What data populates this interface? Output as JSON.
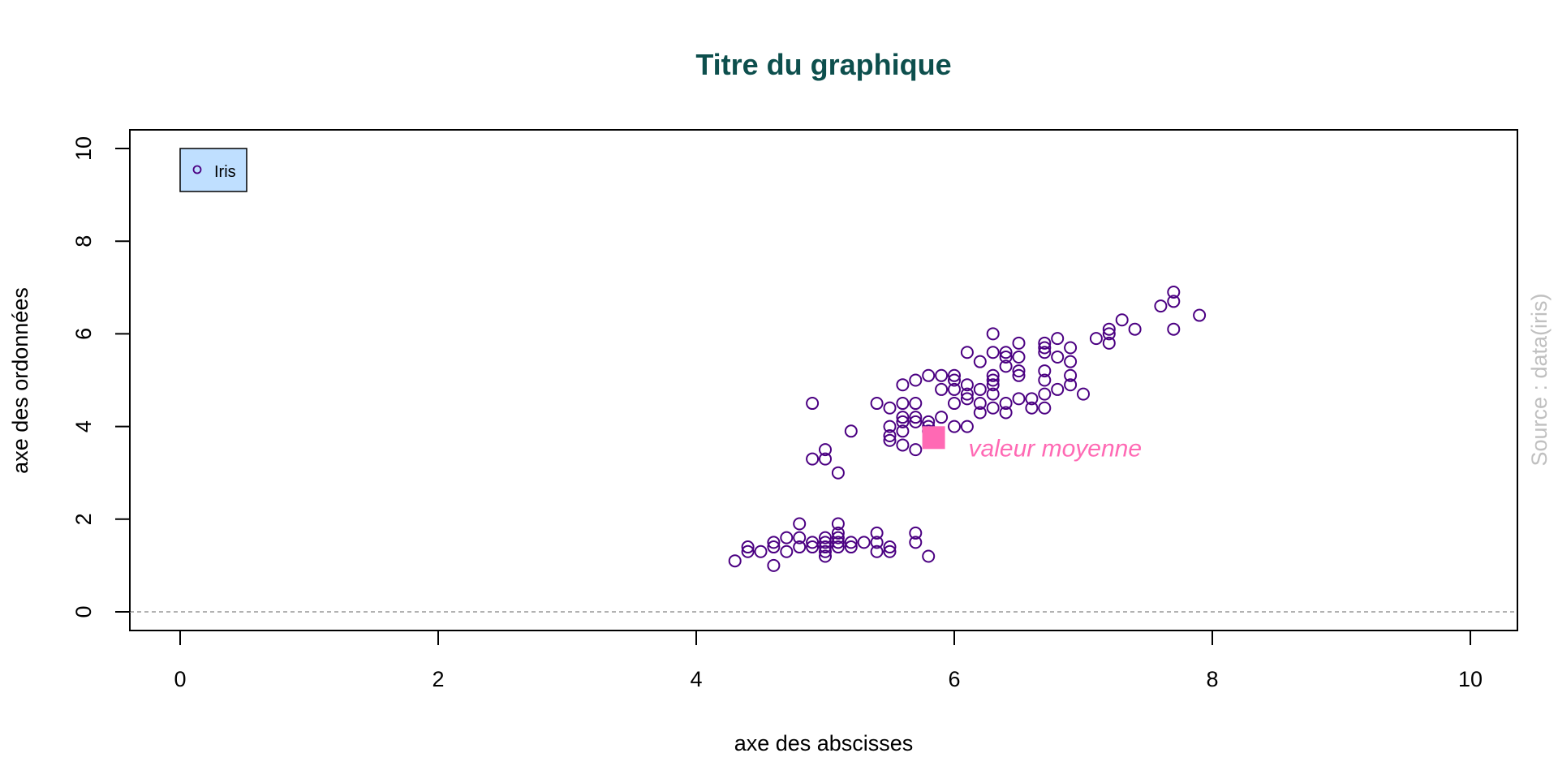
{
  "chart_data": {
    "type": "scatter",
    "title": "Titre du graphique",
    "xlabel": "axe des abscisses",
    "ylabel": "axe des ordonnées",
    "xlim": [
      0,
      10
    ],
    "ylim": [
      0,
      10
    ],
    "x_ticks": [
      0,
      2,
      4,
      6,
      8,
      10
    ],
    "y_ticks": [
      0,
      2,
      4,
      6,
      8,
      10
    ],
    "grid": false,
    "reference_line_y": 0,
    "legend": {
      "placement": "top-left",
      "entries": [
        "Iris"
      ]
    },
    "series": [
      {
        "name": "Iris",
        "marker": "open-circle",
        "points": [
          [
            4.3,
            1.1
          ],
          [
            4.4,
            1.3
          ],
          [
            4.4,
            1.4
          ],
          [
            4.5,
            1.3
          ],
          [
            4.6,
            1.0
          ],
          [
            4.6,
            1.4
          ],
          [
            4.6,
            1.5
          ],
          [
            4.7,
            1.3
          ],
          [
            4.7,
            1.6
          ],
          [
            4.8,
            1.4
          ],
          [
            4.8,
            1.6
          ],
          [
            4.8,
            1.9
          ],
          [
            4.9,
            1.4
          ],
          [
            4.9,
            1.5
          ],
          [
            5.0,
            1.2
          ],
          [
            5.0,
            1.3
          ],
          [
            5.0,
            1.4
          ],
          [
            5.0,
            1.5
          ],
          [
            5.0,
            1.6
          ],
          [
            5.1,
            1.4
          ],
          [
            5.1,
            1.5
          ],
          [
            5.1,
            1.7
          ],
          [
            5.1,
            1.9
          ],
          [
            5.1,
            1.6
          ],
          [
            5.2,
            1.4
          ],
          [
            5.2,
            1.5
          ],
          [
            5.3,
            1.5
          ],
          [
            5.4,
            1.3
          ],
          [
            5.4,
            1.5
          ],
          [
            5.4,
            1.7
          ],
          [
            5.5,
            1.3
          ],
          [
            5.5,
            1.4
          ],
          [
            5.7,
            1.5
          ],
          [
            5.7,
            1.7
          ],
          [
            5.8,
            1.2
          ],
          [
            4.9,
            4.5
          ],
          [
            4.9,
            3.3
          ],
          [
            5.0,
            3.3
          ],
          [
            5.0,
            3.5
          ],
          [
            5.1,
            3.0
          ],
          [
            5.2,
            3.9
          ],
          [
            5.4,
            4.5
          ],
          [
            5.5,
            3.7
          ],
          [
            5.5,
            3.8
          ],
          [
            5.5,
            4.0
          ],
          [
            5.5,
            4.4
          ],
          [
            5.6,
            3.6
          ],
          [
            5.6,
            3.9
          ],
          [
            5.6,
            4.1
          ],
          [
            5.6,
            4.2
          ],
          [
            5.6,
            4.5
          ],
          [
            5.6,
            4.9
          ],
          [
            5.7,
            3.5
          ],
          [
            5.7,
            4.1
          ],
          [
            5.7,
            4.2
          ],
          [
            5.7,
            4.5
          ],
          [
            5.7,
            5.0
          ],
          [
            5.8,
            3.9
          ],
          [
            5.8,
            4.0
          ],
          [
            5.8,
            4.1
          ],
          [
            5.8,
            5.1
          ],
          [
            5.9,
            4.2
          ],
          [
            5.9,
            4.8
          ],
          [
            5.9,
            5.1
          ],
          [
            6.0,
            4.0
          ],
          [
            6.0,
            4.5
          ],
          [
            6.0,
            4.8
          ],
          [
            6.0,
            5.0
          ],
          [
            6.0,
            5.1
          ],
          [
            6.1,
            4.0
          ],
          [
            6.1,
            4.6
          ],
          [
            6.1,
            4.7
          ],
          [
            6.1,
            4.9
          ],
          [
            6.1,
            5.6
          ],
          [
            6.2,
            4.3
          ],
          [
            6.2,
            4.5
          ],
          [
            6.2,
            4.8
          ],
          [
            6.2,
            5.4
          ],
          [
            6.3,
            4.4
          ],
          [
            6.3,
            4.7
          ],
          [
            6.3,
            4.9
          ],
          [
            6.3,
            5.0
          ],
          [
            6.3,
            5.1
          ],
          [
            6.3,
            5.6
          ],
          [
            6.3,
            6.0
          ],
          [
            6.4,
            4.3
          ],
          [
            6.4,
            4.5
          ],
          [
            6.4,
            5.3
          ],
          [
            6.4,
            5.5
          ],
          [
            6.4,
            5.6
          ],
          [
            6.5,
            4.6
          ],
          [
            6.5,
            5.1
          ],
          [
            6.5,
            5.2
          ],
          [
            6.5,
            5.5
          ],
          [
            6.5,
            5.8
          ],
          [
            6.6,
            4.4
          ],
          [
            6.6,
            4.6
          ],
          [
            6.7,
            4.4
          ],
          [
            6.7,
            4.7
          ],
          [
            6.7,
            5.0
          ],
          [
            6.7,
            5.2
          ],
          [
            6.7,
            5.6
          ],
          [
            6.7,
            5.7
          ],
          [
            6.7,
            5.8
          ],
          [
            6.8,
            4.8
          ],
          [
            6.8,
            5.5
          ],
          [
            6.8,
            5.9
          ],
          [
            6.9,
            4.9
          ],
          [
            6.9,
            5.1
          ],
          [
            6.9,
            5.4
          ],
          [
            6.9,
            5.7
          ],
          [
            7.0,
            4.7
          ],
          [
            7.1,
            5.9
          ],
          [
            7.2,
            5.8
          ],
          [
            7.2,
            6.0
          ],
          [
            7.2,
            6.1
          ],
          [
            7.3,
            6.3
          ],
          [
            7.4,
            6.1
          ],
          [
            7.6,
            6.6
          ],
          [
            7.7,
            6.1
          ],
          [
            7.7,
            6.7
          ],
          [
            7.7,
            6.9
          ],
          [
            7.9,
            6.4
          ]
        ]
      }
    ],
    "mean_point": {
      "x": 5.84,
      "y": 3.76,
      "label": "valeur moyenne"
    },
    "source_note": "Source : data(iris)"
  },
  "colors": {
    "title": "#0d4f4d",
    "points": "#4b0082",
    "mean": "#ff69b4",
    "legend_bg": "#bfdfff",
    "source": "#c0c0c0",
    "zero_line": "#999999"
  }
}
